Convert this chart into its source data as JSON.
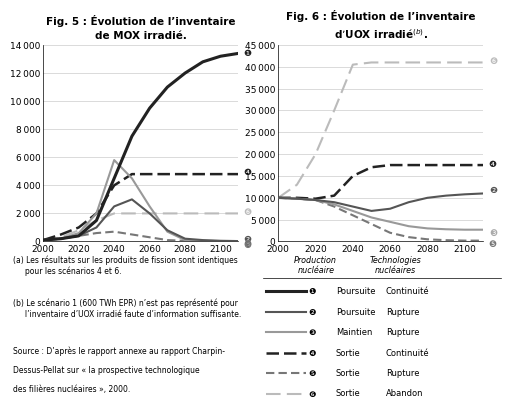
{
  "fig5_title": "Fig. 5 : Évolution de l’inventaire\nde MOX irradié.",
  "fig6_title": "Fig. 6 : Évolution de l’inventaire\nd’UOX irradié",
  "xvals": [
    2000,
    2010,
    2020,
    2030,
    2040,
    2050,
    2060,
    2070,
    2080,
    2090,
    2100,
    2110
  ],
  "mox_s1": [
    100,
    200,
    400,
    1500,
    4500,
    7500,
    9500,
    11000,
    12000,
    12800,
    13200,
    13400
  ],
  "mox_s2": [
    100,
    200,
    400,
    1000,
    2500,
    3000,
    2000,
    800,
    200,
    100,
    50,
    30
  ],
  "mox_s3": [
    100,
    200,
    600,
    2000,
    5800,
    4500,
    2500,
    700,
    100,
    50,
    30,
    20
  ],
  "mox_s4": [
    100,
    500,
    1000,
    2000,
    4000,
    4800,
    4800,
    4800,
    4800,
    4800,
    4800,
    4800
  ],
  "mox_s5": [
    100,
    200,
    400,
    600,
    700,
    500,
    300,
    100,
    50,
    30,
    20,
    10
  ],
  "mox_s6": [
    100,
    300,
    800,
    1500,
    2000,
    2000,
    2000,
    2000,
    2000,
    2000,
    2000,
    2000
  ],
  "uox_s2": [
    10000,
    9800,
    9500,
    9000,
    8000,
    7000,
    7500,
    9000,
    10000,
    10500,
    10800,
    11000
  ],
  "uox_s3": [
    10000,
    9800,
    9500,
    8500,
    7000,
    5500,
    4500,
    3500,
    3000,
    2800,
    2700,
    2700
  ],
  "uox_s4": [
    10000,
    10000,
    9800,
    10500,
    15000,
    17000,
    17500,
    17500,
    17500,
    17500,
    17500,
    17500
  ],
  "uox_s5": [
    10000,
    9800,
    9500,
    8000,
    6000,
    4000,
    2000,
    1000,
    500,
    300,
    200,
    200
  ],
  "uox_s6": [
    10000,
    13000,
    20000,
    30000,
    40500,
    41000,
    41000,
    41000,
    41000,
    41000,
    41000,
    41000
  ],
  "fig5_ylim": [
    0,
    14000
  ],
  "fig5_yticks": [
    0,
    2000,
    4000,
    6000,
    8000,
    10000,
    12000,
    14000
  ],
  "fig6_ylim": [
    0,
    45000
  ],
  "fig6_yticks": [
    0,
    5000,
    10000,
    15000,
    20000,
    25000,
    30000,
    35000,
    40000,
    45000
  ],
  "xlim": [
    2000,
    2110
  ],
  "xticks": [
    2000,
    2020,
    2040,
    2060,
    2080,
    2100
  ],
  "color_s1": "#222222",
  "color_s2": "#555555",
  "color_s3": "#999999",
  "color_s4": "#222222",
  "color_s5": "#777777",
  "color_s6": "#bbbbbb",
  "footnote_a": "(a) Les résultats sur les produits de fission sont identiques\n     pour les scénarios 4 et 6.",
  "footnote_b": "(b) Le scénario 1 (600 TWh EPR) n’est pas représenté pour\n     l’inventaire d’UOX irradié faute d’information suffisante.",
  "footnote_src1": "Source : D’après le rapport annexe au rapport Charpin-",
  "footnote_src2": "Dessus-Pellat sur « la prospective technologique",
  "footnote_src3": "des filières nucléaires », 2000.",
  "legend_entries": [
    {
      "num": 1,
      "prod": "Poursuite",
      "tech": "Continuité"
    },
    {
      "num": 2,
      "prod": "Poursuite",
      "tech": "Rupture"
    },
    {
      "num": 3,
      "prod": "Maintien",
      "tech": "Rupture"
    },
    {
      "num": 4,
      "prod": "Sortie",
      "tech": "Continuité"
    },
    {
      "num": 5,
      "prod": "Sortie",
      "tech": "Rupture"
    },
    {
      "num": 6,
      "prod": "Sortie",
      "tech": "Abandon"
    }
  ]
}
